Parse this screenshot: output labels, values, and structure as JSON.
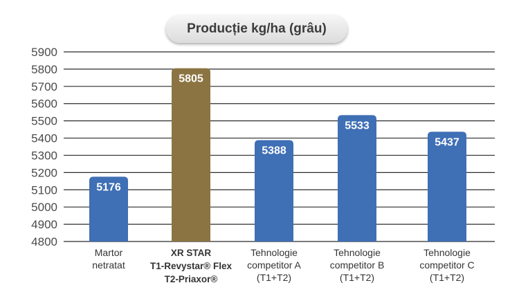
{
  "chart_data": {
    "type": "bar",
    "title": "Producție kg/ha (grâu)",
    "ylim": [
      4800,
      5900
    ],
    "yticks": [
      4800,
      4900,
      5000,
      5100,
      5200,
      5300,
      5400,
      5500,
      5600,
      5700,
      5800,
      5900
    ],
    "grid": true,
    "categories": [
      [
        "Martor",
        "netratat"
      ],
      [
        "XR STAR",
        "T1-Revystar® Flex",
        "T2-Priaxor®"
      ],
      [
        "Tehnologie",
        "competitor A",
        "(T1+T2)"
      ],
      [
        "Tehnologie",
        "competitor B",
        "(T1+T2)"
      ],
      [
        "Tehnologie",
        "competitor C",
        "(T1+T2)"
      ]
    ],
    "category_bold": [
      false,
      true,
      false,
      false,
      false
    ],
    "values": [
      5176,
      5805,
      5388,
      5533,
      5437
    ],
    "colors": [
      "#3f6fb5",
      "#8c7442",
      "#3f6fb5",
      "#3f6fb5",
      "#3f6fb5"
    ]
  }
}
